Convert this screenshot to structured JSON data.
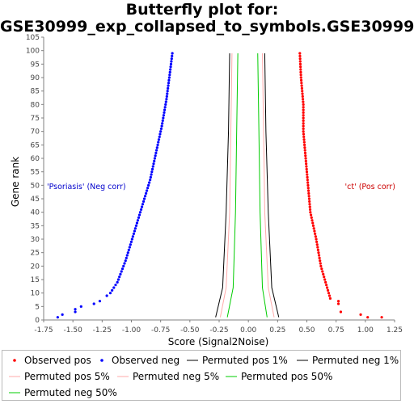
{
  "title": {
    "line1": "Butterfly plot for:",
    "line2": "GSE30999_exp_collapsed_to_symbols.GSE30999"
  },
  "chart_data": {
    "type": "scatter",
    "xlabel": "Score (Signal2Noise)",
    "ylabel": "Gene rank",
    "xlim": [
      -1.75,
      1.25
    ],
    "ylim": [
      0,
      105
    ],
    "xticks": [
      "-1.75",
      "-1.50",
      "-1.25",
      "-1.00",
      "-0.75",
      "-0.50",
      "-0.25",
      "0.00",
      "0.25",
      "0.50",
      "0.75",
      "1.00",
      "1.25"
    ],
    "yticks": [
      "0",
      "5",
      "10",
      "15",
      "20",
      "25",
      "30",
      "35",
      "40",
      "45",
      "50",
      "55",
      "60",
      "65",
      "70",
      "75",
      "80",
      "85",
      "90",
      "95",
      "100",
      "105"
    ],
    "annotations": {
      "neg_label": "'Psoriasis' (Neg corr)",
      "pos_label": "'ct' (Pos corr)"
    },
    "colors": {
      "observed_pos": "#ff0000",
      "observed_neg": "#0000ff",
      "perm_1": "#000000",
      "perm_5": "#ffaaaa",
      "perm_50": "#00cc00"
    },
    "observed_pos": {
      "anchors": [
        [
          1.14,
          1
        ],
        [
          1.02,
          1
        ],
        [
          0.96,
          2
        ],
        [
          0.79,
          3
        ],
        [
          0.77,
          6
        ],
        [
          0.77,
          7
        ],
        [
          0.7,
          8
        ],
        [
          0.68,
          11
        ],
        [
          0.62,
          20
        ],
        [
          0.58,
          30
        ],
        [
          0.53,
          40
        ],
        [
          0.51,
          50
        ],
        [
          0.49,
          60
        ],
        [
          0.47,
          70
        ],
        [
          0.47,
          80
        ],
        [
          0.45,
          90
        ],
        [
          0.44,
          99
        ]
      ]
    },
    "observed_neg": {
      "anchors": [
        [
          -1.63,
          1
        ],
        [
          -1.59,
          2
        ],
        [
          -1.48,
          3
        ],
        [
          -1.48,
          4
        ],
        [
          -1.43,
          5
        ],
        [
          -1.32,
          6
        ],
        [
          -1.27,
          7
        ],
        [
          -1.18,
          10
        ],
        [
          -1.12,
          14
        ],
        [
          -1.05,
          22
        ],
        [
          -0.98,
          32
        ],
        [
          -0.91,
          42
        ],
        [
          -0.84,
          52
        ],
        [
          -0.79,
          62
        ],
        [
          -0.74,
          72
        ],
        [
          -0.7,
          82
        ],
        [
          -0.67,
          92
        ],
        [
          -0.65,
          99
        ]
      ]
    },
    "perm_pos_1": [
      [
        0.26,
        1
      ],
      [
        0.2,
        12
      ],
      [
        0.17,
        40
      ],
      [
        0.15,
        70
      ],
      [
        0.14,
        99
      ]
    ],
    "perm_neg_1": [
      [
        -0.28,
        1
      ],
      [
        -0.22,
        12
      ],
      [
        -0.19,
        40
      ],
      [
        -0.17,
        70
      ],
      [
        -0.16,
        99
      ]
    ],
    "perm_pos_5": [
      [
        0.22,
        1
      ],
      [
        0.17,
        12
      ],
      [
        0.14,
        40
      ],
      [
        0.13,
        70
      ],
      [
        0.12,
        99
      ]
    ],
    "perm_neg_5": [
      [
        -0.24,
        1
      ],
      [
        -0.19,
        12
      ],
      [
        -0.16,
        40
      ],
      [
        -0.15,
        70
      ],
      [
        -0.14,
        99
      ]
    ],
    "perm_pos_50": [
      [
        0.16,
        1
      ],
      [
        0.12,
        12
      ],
      [
        0.1,
        40
      ],
      [
        0.09,
        70
      ],
      [
        0.08,
        99
      ]
    ],
    "perm_neg_50": [
      [
        -0.18,
        1
      ],
      [
        -0.13,
        12
      ],
      [
        -0.11,
        40
      ],
      [
        -0.1,
        70
      ],
      [
        -0.09,
        99
      ]
    ]
  },
  "legend": {
    "items": [
      {
        "key": "observed_pos",
        "label": "Observed pos",
        "symbol": "dot",
        "color": "#ff0000"
      },
      {
        "key": "observed_neg",
        "label": "Observed neg",
        "symbol": "dot",
        "color": "#0000ff"
      },
      {
        "key": "perm_pos_1",
        "label": "Permuted pos 1%",
        "symbol": "line",
        "color": "#000000"
      },
      {
        "key": "perm_neg_1",
        "label": "Permuted neg 1%",
        "symbol": "line",
        "color": "#000000"
      },
      {
        "key": "perm_pos_5",
        "label": "Permuted pos 5%",
        "symbol": "line",
        "color": "#ffaaaa"
      },
      {
        "key": "perm_neg_5",
        "label": "Permuted neg 5%",
        "symbol": "line",
        "color": "#ffaaaa"
      },
      {
        "key": "perm_pos_50",
        "label": "Permuted pos 50%",
        "symbol": "line",
        "color": "#00cc00"
      },
      {
        "key": "perm_neg_50",
        "label": "Permuted neg 50%",
        "symbol": "line",
        "color": "#00cc00"
      }
    ]
  }
}
